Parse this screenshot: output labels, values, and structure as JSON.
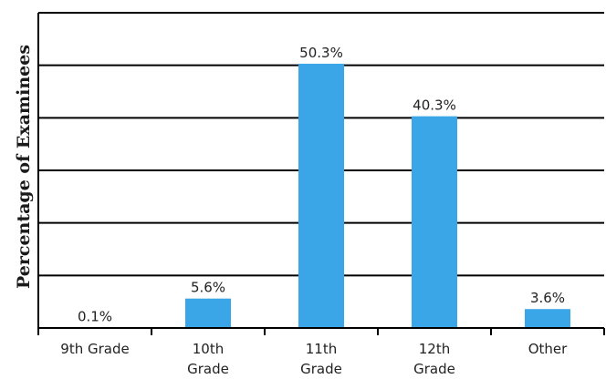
{
  "chart_data": {
    "type": "bar",
    "title": "",
    "xlabel": "",
    "ylabel": "Percentage of Examinees",
    "categories": [
      [
        "9th Grade"
      ],
      [
        "10th",
        "Grade"
      ],
      [
        "11th",
        "Grade"
      ],
      [
        "12th",
        "Grade"
      ],
      [
        "Other"
      ]
    ],
    "values": [
      0.1,
      5.6,
      50.3,
      40.3,
      3.6
    ],
    "data_labels": [
      "0.1%",
      "5.6%",
      "50.3%",
      "40.3%",
      "3.6%"
    ],
    "ylim": [
      0,
      60
    ],
    "grid": true,
    "bar_color": "#3aa6e8",
    "axis_color": "#000000"
  }
}
